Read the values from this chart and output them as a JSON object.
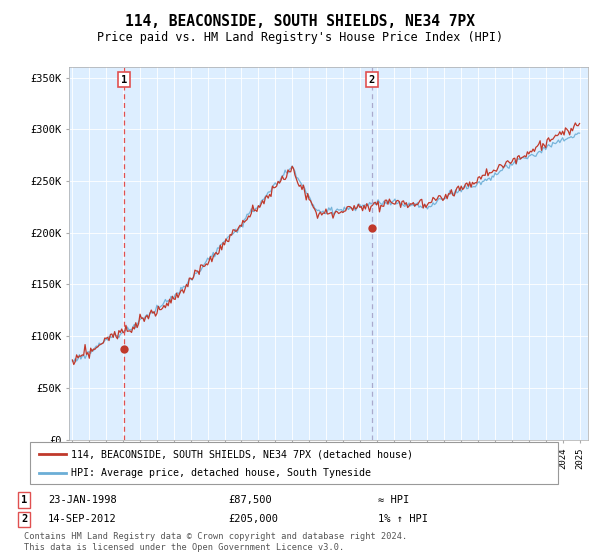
{
  "title": "114, BEACONSIDE, SOUTH SHIELDS, NE34 7PX",
  "subtitle": "Price paid vs. HM Land Registry's House Price Index (HPI)",
  "ylabel_ticks": [
    "£0",
    "£50K",
    "£100K",
    "£150K",
    "£200K",
    "£250K",
    "£300K",
    "£350K"
  ],
  "ylim": [
    0,
    360000
  ],
  "xlim_start": 1994.8,
  "xlim_end": 2025.5,
  "sale1_date": 1998.06,
  "sale1_price": 87500,
  "sale2_date": 2012.71,
  "sale2_price": 205000,
  "sale1_label": "1",
  "sale2_label": "2",
  "legend_line1": "114, BEACONSIDE, SOUTH SHIELDS, NE34 7PX (detached house)",
  "legend_line2": "HPI: Average price, detached house, South Tyneside",
  "table_row1_date": "23-JAN-1998",
  "table_row1_price": "£87,500",
  "table_row1_hpi": "≈ HPI",
  "table_row2_date": "14-SEP-2012",
  "table_row2_price": "£205,000",
  "table_row2_hpi": "1% ↑ HPI",
  "footer": "Contains HM Land Registry data © Crown copyright and database right 2024.\nThis data is licensed under the Open Government Licence v3.0.",
  "hpi_color": "#6baed6",
  "price_color": "#c0392b",
  "vline1_color": "#e05050",
  "vline2_color": "#aaaacc",
  "plot_bg_color": "#ddeeff",
  "grid_color": "#ffffff",
  "background_color": "#ffffff"
}
